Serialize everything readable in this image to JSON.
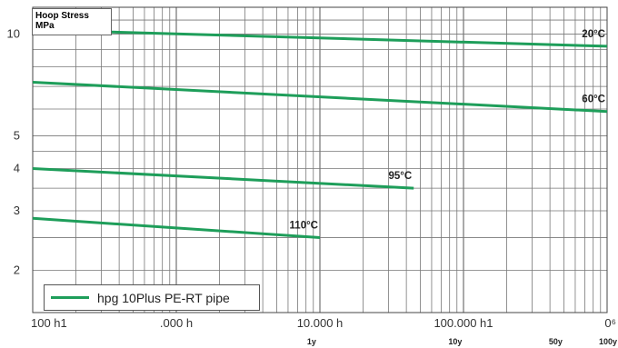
{
  "chart_data": {
    "type": "line",
    "title": "",
    "ylabel_lines": [
      "Hoop Stress",
      "MPa"
    ],
    "xlabel": "",
    "x_scale": "log",
    "y_scale": "log",
    "xlim": [
      100,
      1000000
    ],
    "ylim": [
      1.5,
      12
    ],
    "x_tick_labels": [
      {
        "x": 100,
        "text": "100 h1"
      },
      {
        "x": 1000,
        "text": ".000 h"
      },
      {
        "x": 10000,
        "text": "10.000 h"
      },
      {
        "x": 100000,
        "text": "100.000 h1"
      },
      {
        "x": 1000000,
        "text": "0⁶"
      }
    ],
    "x_secondary_labels": [
      {
        "x": 8760,
        "text": "1y"
      },
      {
        "x": 87600,
        "text": "10y"
      },
      {
        "x": 438000,
        "text": "50y"
      },
      {
        "x": 876000,
        "text": "100y"
      }
    ],
    "y_tick_labels": [
      {
        "y": 2,
        "text": "2"
      },
      {
        "y": 3,
        "text": "3"
      },
      {
        "y": 4,
        "text": "4"
      },
      {
        "y": 5,
        "text": "5"
      },
      {
        "y": 10,
        "text": "10"
      }
    ],
    "grid": true,
    "line_color": "#1e9e5a",
    "series": [
      {
        "label": "20°C",
        "x": [
          100,
          1000000
        ],
        "y": [
          10.3,
          9.2
        ]
      },
      {
        "label": "60°C",
        "x": [
          100,
          1000000
        ],
        "y": [
          7.2,
          5.9
        ]
      },
      {
        "label": "95°C",
        "x": [
          100,
          45000
        ],
        "y": [
          4.0,
          3.5
        ]
      },
      {
        "label": "110°C",
        "x": [
          100,
          10000
        ],
        "y": [
          2.85,
          2.5
        ]
      }
    ],
    "legend": {
      "label": "hpg 10Plus PE-RT pipe",
      "position": "bottom-left"
    }
  }
}
